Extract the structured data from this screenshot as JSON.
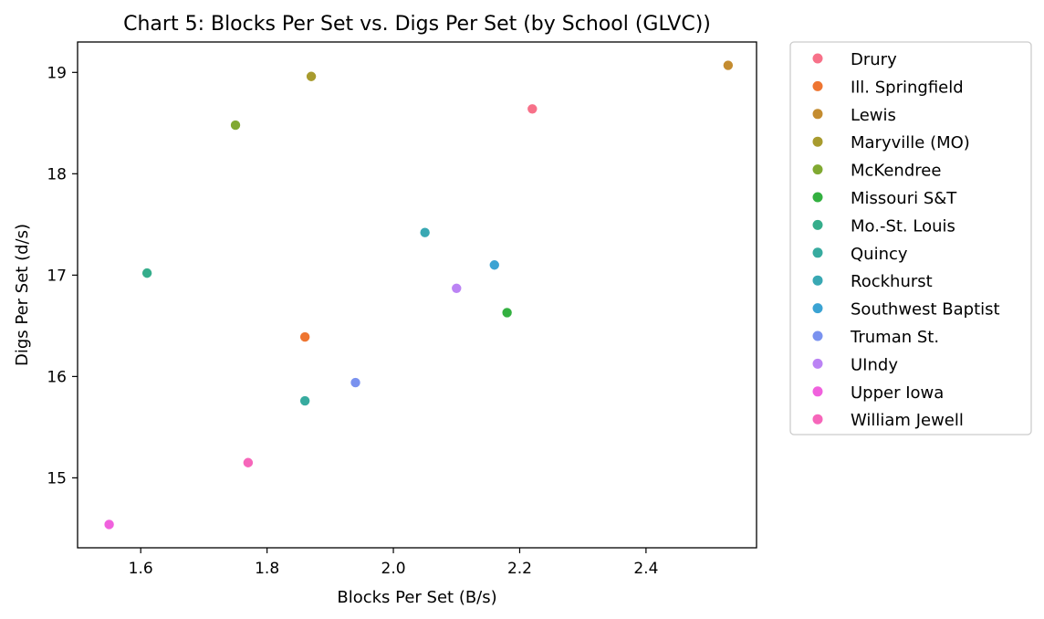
{
  "chart_data": {
    "type": "scatter",
    "title": "Chart 5: Blocks Per Set vs. Digs Per Set (by School (GLVC))",
    "xlabel": "Blocks Per Set (B/s)",
    "ylabel": "Digs Per Set (d/s)",
    "xlim": [
      1.5,
      2.575
    ],
    "ylim": [
      14.31,
      19.3
    ],
    "xticks": [
      1.6,
      1.8,
      2.0,
      2.2,
      2.4
    ],
    "xtick_labels": [
      "1.6",
      "1.8",
      "2.0",
      "2.2",
      "2.4"
    ],
    "yticks": [
      15,
      16,
      17,
      18,
      19
    ],
    "ytick_labels": [
      "15",
      "16",
      "17",
      "18",
      "19"
    ],
    "grid": false,
    "legend_position": "outside-right-top",
    "series": [
      {
        "name": "Drury",
        "color": "#f77189",
        "x": 2.22,
        "y": 18.64
      },
      {
        "name": "Ill. Springfield",
        "color": "#ee7531",
        "x": 1.86,
        "y": 16.39
      },
      {
        "name": "Lewis",
        "color": "#c48c30",
        "x": 2.53,
        "y": 19.07
      },
      {
        "name": "Maryville (MO)",
        "color": "#a89b2e",
        "x": 1.87,
        "y": 18.96
      },
      {
        "name": "McKendree",
        "color": "#80a931",
        "x": 1.75,
        "y": 18.48
      },
      {
        "name": "Missouri S&T",
        "color": "#33b040",
        "x": 2.18,
        "y": 16.63
      },
      {
        "name": "Mo.-St. Louis",
        "color": "#35ad8b",
        "x": 1.61,
        "y": 17.02
      },
      {
        "name": "Quincy",
        "color": "#37ab9f",
        "x": 1.86,
        "y": 15.76
      },
      {
        "name": "Rockhurst",
        "color": "#39a8b3",
        "x": 2.05,
        "y": 17.42
      },
      {
        "name": "Southwest Baptist",
        "color": "#3ba3d3",
        "x": 2.16,
        "y": 17.1
      },
      {
        "name": "Truman St.",
        "color": "#7a92ef",
        "x": 1.94,
        "y": 15.94
      },
      {
        "name": "UIndy",
        "color": "#bb83f4",
        "x": 2.1,
        "y": 16.87
      },
      {
        "name": "Upper Iowa",
        "color": "#f061dd",
        "x": 1.55,
        "y": 14.54
      },
      {
        "name": "William Jewell",
        "color": "#f666ba",
        "x": 1.77,
        "y": 15.15
      }
    ]
  }
}
